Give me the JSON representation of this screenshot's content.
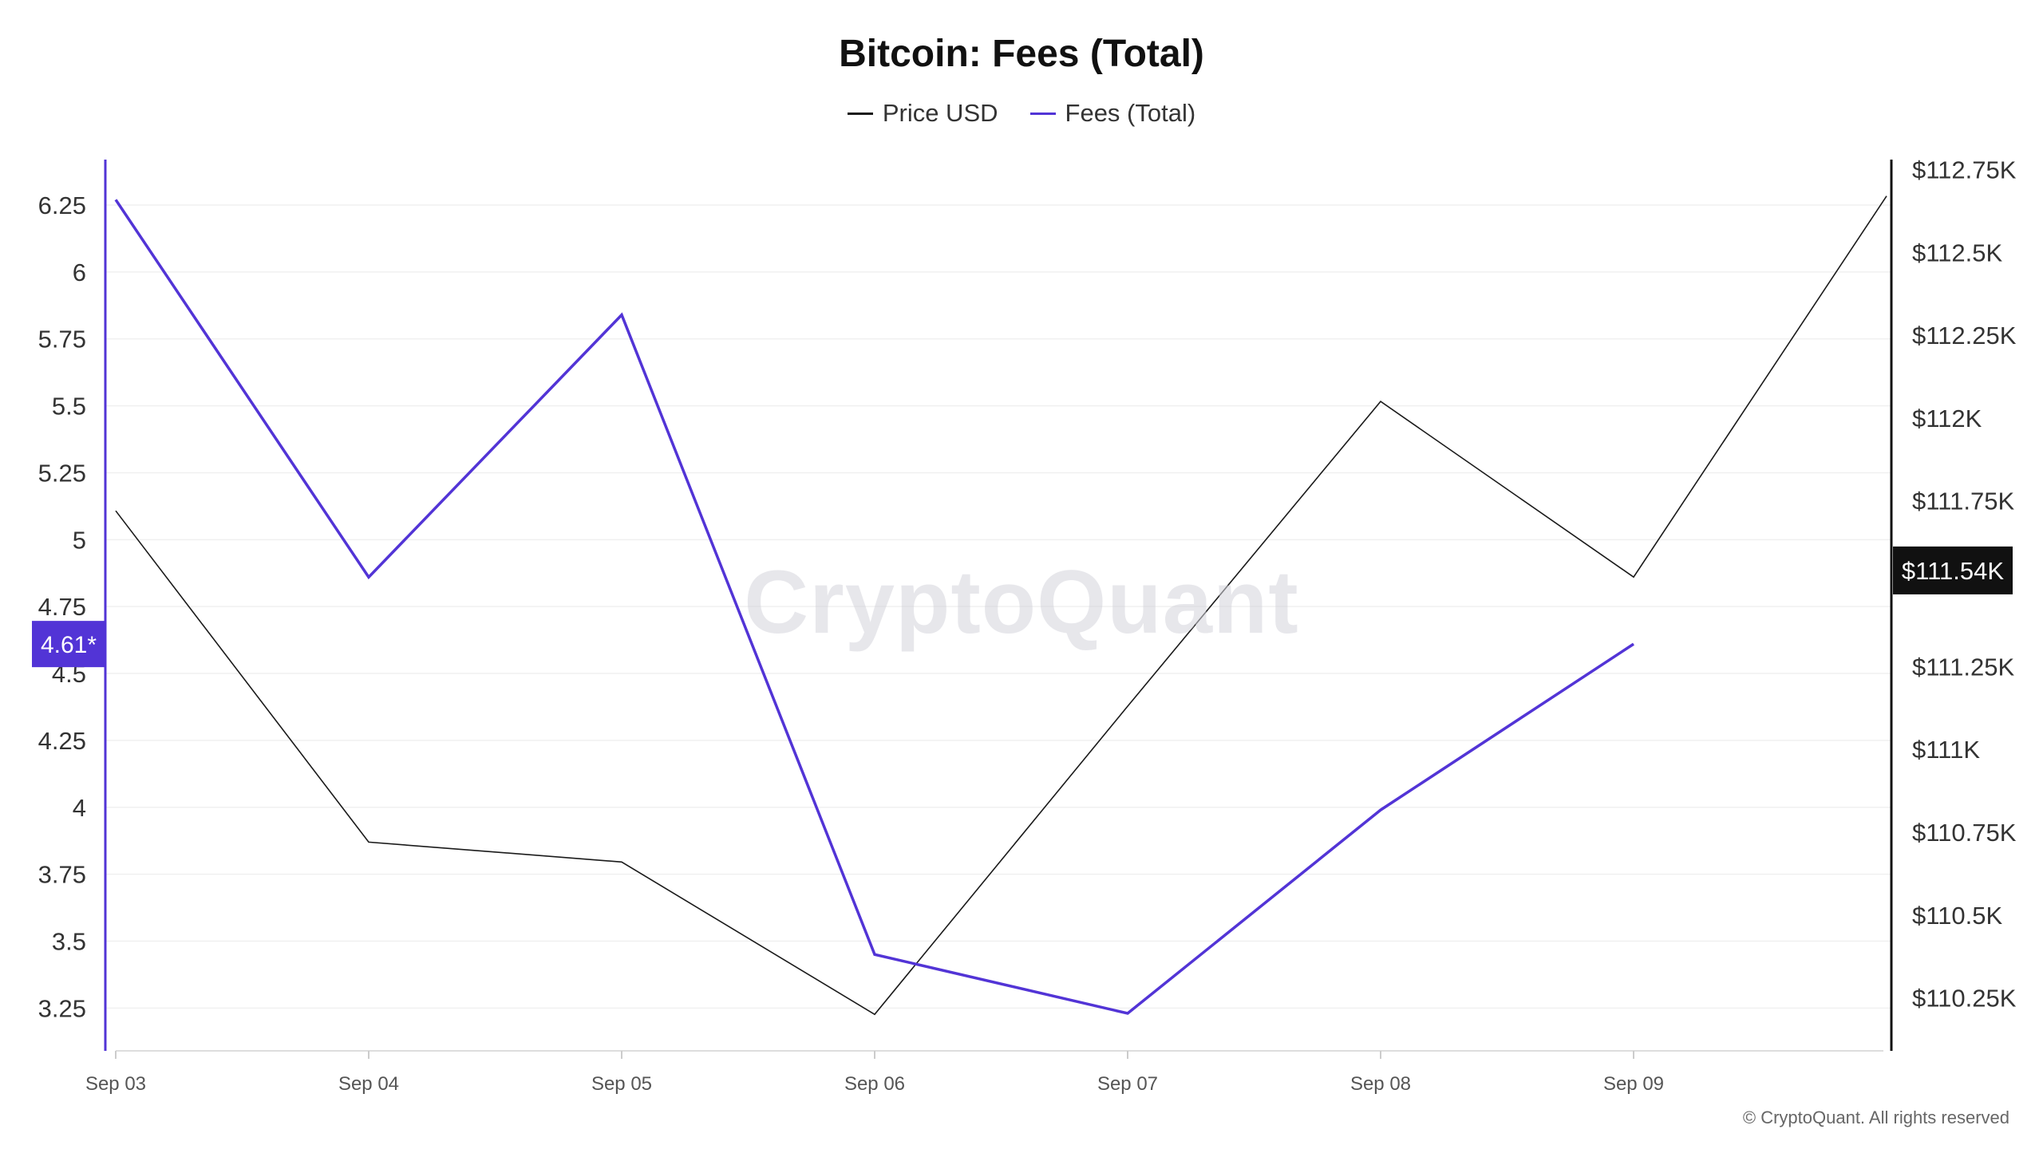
{
  "chart_data": {
    "type": "line",
    "title": "Bitcoin: Fees (Total)",
    "categories": [
      "Sep 03",
      "Sep 04",
      "Sep 05",
      "Sep 06",
      "Sep 07",
      "Sep 08",
      "Sep 09",
      ""
    ],
    "series": [
      {
        "name": "Price USD",
        "axis": "right",
        "color": "#1a1a1a",
        "values": [
          111720,
          110720,
          110660,
          110200,
          111130,
          112050,
          111520,
          112670
        ]
      },
      {
        "name": "Fees (Total)",
        "axis": "left",
        "color": "#5234d6",
        "values": [
          6.27,
          4.86,
          5.84,
          3.45,
          3.23,
          3.99,
          4.61,
          null
        ]
      }
    ],
    "left_axis": {
      "ylim": [
        3.09,
        6.42
      ],
      "ticks": [
        "6.25",
        "6",
        "5.75",
        "5.5",
        "5.25",
        "5",
        "4.75",
        "4.5",
        "4.25",
        "4",
        "3.75",
        "3.5",
        "3.25"
      ],
      "tick_values": [
        6.25,
        6,
        5.75,
        5.5,
        5.25,
        5,
        4.75,
        4.5,
        4.25,
        4,
        3.75,
        3.5,
        3.25
      ],
      "marker_label": "4.61*",
      "marker_value": 4.61
    },
    "right_axis": {
      "ylim": [
        110090,
        112780
      ],
      "ticks": [
        "$112.75K",
        "$112.5K",
        "$112.25K",
        "$112K",
        "$111.75K",
        "$111.5K",
        "$111.25K",
        "$111K",
        "$110.75K",
        "$110.5K",
        "$110.25K"
      ],
      "tick_values": [
        112750,
        112500,
        112250,
        112000,
        111750,
        111500,
        111250,
        111000,
        110750,
        110500,
        110250
      ],
      "marker_label": "$111.54K",
      "marker_value": 111540
    },
    "grid": true,
    "legend_position": "top-center"
  },
  "watermark": "CryptoQuant",
  "copyright": "© CryptoQuant. All rights reserved"
}
